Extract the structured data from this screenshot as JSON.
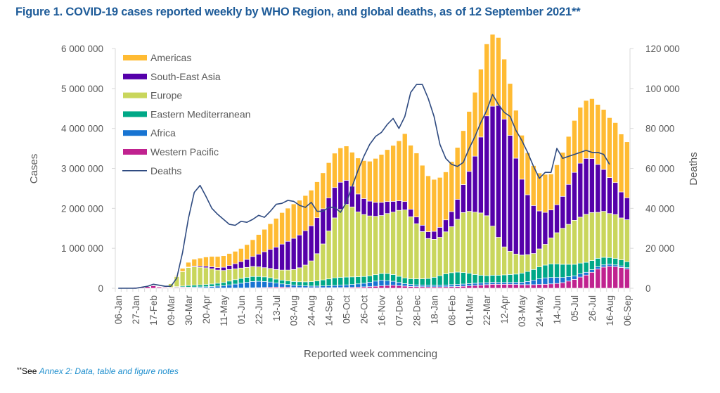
{
  "title": "Figure 1. COVID-19 cases reported weekly by WHO Region, and global deaths, as of 12 September 2021**",
  "footnote": {
    "marker": "**",
    "prefix": "See ",
    "link": "Annex 2: Data, table and figure notes"
  },
  "colors": {
    "Americas": "#ffbb33",
    "South-East Asia": "#5500aa",
    "Europe": "#c9d65c",
    "Eastern Mediterranean": "#00a887",
    "Africa": "#1874d2",
    "Western Pacific": "#c0228f",
    "Deaths": "#2e4a80"
  },
  "chart_data": {
    "type": "bar",
    "stacked": true,
    "title": "Figure 1. COVID-19 cases reported weekly by WHO Region, and global deaths, as of 12 September 2021**",
    "xlabel": "Reported week commencing",
    "ylabel": "Cases",
    "y2label": "Deaths",
    "ylim": [
      0,
      6000000
    ],
    "y2lim": [
      0,
      120000
    ],
    "yticks": [
      "0",
      "1 000 000",
      "2 000 000",
      "3 000 000",
      "4 000 000",
      "5 000 000",
      "6 000 000"
    ],
    "y2ticks": [
      "0",
      "20 000",
      "40 000",
      "60 000",
      "80 000",
      "100 000",
      "120 000"
    ],
    "legend_position": "top-left",
    "xtick_labels": [
      "06-Jan",
      "27-Jan",
      "17-Feb",
      "09-Mar",
      "30-Mar",
      "20-Apr",
      "11-May",
      "01-Jun",
      "22-Jun",
      "13-Jul",
      "03-Aug",
      "24-Aug",
      "14-Sep",
      "05-Oct",
      "26-Oct",
      "16-Nov",
      "07-Dec",
      "28-Dec",
      "18-Jan",
      "08-Feb",
      "01-Mar",
      "22-Mar",
      "12-Apr",
      "03-May",
      "24-May",
      "14-Jun",
      "05-Jul",
      "26-Jul",
      "16-Aug",
      "06-Sep"
    ],
    "xtick_every": 3,
    "weeks": 88,
    "series": [
      {
        "name": "Western Pacific",
        "values": [
          5000,
          10000,
          15000,
          20000,
          30000,
          40000,
          60000,
          30000,
          20000,
          15000,
          20000,
          20000,
          15000,
          12000,
          10000,
          8000,
          7000,
          6000,
          5000,
          5000,
          5000,
          6000,
          8000,
          10000,
          15000,
          20000,
          25000,
          30000,
          30000,
          25000,
          20000,
          18000,
          16000,
          15000,
          15000,
          14000,
          14000,
          16000,
          18000,
          20000,
          25000,
          30000,
          35000,
          40000,
          50000,
          60000,
          70000,
          75000,
          65000,
          55000,
          45000,
          40000,
          38000,
          35000,
          35000,
          35000,
          37000,
          40000,
          45000,
          50000,
          60000,
          70000,
          80000,
          90000,
          100000,
          100000,
          100000,
          100000,
          95000,
          90000,
          90000,
          90000,
          95000,
          100000,
          110000,
          120000,
          140000,
          180000,
          220000,
          280000,
          330000,
          400000,
          480000,
          530000,
          550000,
          540000,
          520000,
          480000
        ]
      },
      {
        "name": "Africa",
        "values": [
          0,
          0,
          0,
          0,
          0,
          0,
          0,
          0,
          0,
          3000,
          6000,
          10000,
          15000,
          20000,
          25000,
          30000,
          40000,
          50000,
          60000,
          80000,
          100000,
          120000,
          140000,
          160000,
          160000,
          150000,
          130000,
          100000,
          80000,
          70000,
          60000,
          50000,
          45000,
          40000,
          40000,
          45000,
          50000,
          55000,
          60000,
          65000,
          70000,
          80000,
          90000,
          110000,
          130000,
          140000,
          120000,
          100000,
          80000,
          60000,
          50000,
          45000,
          40000,
          40000,
          40000,
          40000,
          45000,
          50000,
          50000,
          55000,
          55000,
          55000,
          55000,
          50000,
          50000,
          45000,
          45000,
          45000,
          50000,
          60000,
          80000,
          110000,
          140000,
          160000,
          160000,
          150000,
          130000,
          110000,
          90000,
          80000,
          70000,
          65000,
          60000,
          55000,
          50000,
          45000,
          40000,
          35000
        ]
      },
      {
        "name": "Eastern Mediterranean",
        "values": [
          0,
          0,
          0,
          0,
          0,
          0,
          0,
          0,
          0,
          5000,
          15000,
          25000,
          40000,
          45000,
          50000,
          55000,
          60000,
          70000,
          80000,
          95000,
          110000,
          120000,
          125000,
          125000,
          120000,
          115000,
          110000,
          100000,
          95000,
          90000,
          90000,
          95000,
          100000,
          110000,
          130000,
          150000,
          170000,
          190000,
          195000,
          195000,
          190000,
          180000,
          170000,
          160000,
          160000,
          170000,
          180000,
          170000,
          155000,
          145000,
          145000,
          150000,
          160000,
          170000,
          200000,
          240000,
          280000,
          300000,
          310000,
          290000,
          260000,
          220000,
          190000,
          175000,
          175000,
          180000,
          190000,
          200000,
          210000,
          230000,
          250000,
          270000,
          300000,
          320000,
          340000,
          340000,
          330000,
          310000,
          290000,
          270000,
          250000,
          230000,
          210000,
          190000,
          170000,
          160000,
          150000,
          150000
        ]
      },
      {
        "name": "Europe",
        "values": [
          0,
          0,
          0,
          0,
          0,
          0,
          0,
          0,
          0,
          90000,
          250000,
          360000,
          450000,
          460000,
          440000,
          420000,
          380000,
          330000,
          300000,
          290000,
          270000,
          260000,
          250000,
          250000,
          240000,
          230000,
          230000,
          240000,
          250000,
          270000,
          300000,
          350000,
          420000,
          520000,
          680000,
          900000,
          1200000,
          1500000,
          1700000,
          1820000,
          1750000,
          1620000,
          1550000,
          1500000,
          1460000,
          1450000,
          1500000,
          1560000,
          1650000,
          1700000,
          1550000,
          1380000,
          1180000,
          1000000,
          950000,
          960000,
          1050000,
          1150000,
          1320000,
          1500000,
          1550000,
          1560000,
          1560000,
          1500000,
          1230000,
          950000,
          700000,
          580000,
          500000,
          450000,
          420000,
          400000,
          450000,
          520000,
          650000,
          780000,
          900000,
          1000000,
          1100000,
          1150000,
          1200000,
          1200000,
          1150000,
          1150000,
          1100000,
          1100000,
          1050000,
          1050000
        ]
      },
      {
        "name": "South-East Asia",
        "values": [
          0,
          0,
          0,
          0,
          0,
          0,
          0,
          0,
          0,
          0,
          0,
          5000,
          10000,
          20000,
          30000,
          40000,
          50000,
          60000,
          80000,
          100000,
          130000,
          160000,
          200000,
          250000,
          320000,
          400000,
          480000,
          560000,
          650000,
          720000,
          780000,
          820000,
          860000,
          880000,
          900000,
          880000,
          830000,
          760000,
          680000,
          600000,
          520000,
          450000,
          400000,
          370000,
          350000,
          330000,
          300000,
          270000,
          240000,
          210000,
          190000,
          170000,
          160000,
          170000,
          200000,
          250000,
          300000,
          380000,
          500000,
          700000,
          1000000,
          1400000,
          1900000,
          2500000,
          3000000,
          3300000,
          3200000,
          2900000,
          2400000,
          1900000,
          1500000,
          1200000,
          950000,
          800000,
          700000,
          700000,
          800000,
          1000000,
          1200000,
          1350000,
          1400000,
          1350000,
          1200000,
          1050000,
          900000,
          800000,
          650000,
          550000
        ]
      },
      {
        "name": "Americas",
        "values": [
          0,
          0,
          0,
          0,
          0,
          0,
          0,
          0,
          0,
          0,
          20000,
          80000,
          120000,
          170000,
          200000,
          230000,
          260000,
          280000,
          290000,
          300000,
          310000,
          330000,
          370000,
          420000,
          490000,
          560000,
          640000,
          720000,
          790000,
          830000,
          860000,
          870000,
          880000,
          890000,
          900000,
          900000,
          880000,
          860000,
          860000,
          860000,
          850000,
          900000,
          950000,
          1000000,
          1100000,
          1200000,
          1300000,
          1400000,
          1500000,
          1700000,
          1600000,
          1600000,
          1500000,
          1400000,
          1300000,
          1250000,
          1200000,
          1250000,
          1300000,
          1350000,
          1500000,
          1600000,
          1700000,
          1800000,
          1800000,
          1700000,
          1500000,
          1300000,
          1200000,
          1100000,
          1050000,
          1000000,
          950000,
          950000,
          900000,
          1000000,
          1100000,
          1200000,
          1300000,
          1400000,
          1450000,
          1500000,
          1500000,
          1500000,
          1500000,
          1500000,
          1450000,
          1400000
        ]
      }
    ],
    "line_series": {
      "name": "Deaths",
      "axis": "right",
      "values": [
        0,
        0,
        0,
        0,
        500,
        1000,
        2000,
        1500,
        1000,
        1000,
        5000,
        18000,
        35000,
        48000,
        51500,
        46000,
        40000,
        37000,
        34500,
        32000,
        31500,
        33500,
        33000,
        34500,
        36500,
        35500,
        38500,
        42000,
        42500,
        44000,
        43500,
        41500,
        40500,
        43000,
        38500,
        38500,
        40500,
        40500,
        38000,
        43000,
        51000,
        59000,
        66000,
        72000,
        76000,
        78000,
        82000,
        85000,
        80000,
        86000,
        98000,
        102000,
        102000,
        95000,
        86000,
        72000,
        65000,
        62000,
        61000,
        63000,
        70000,
        76000,
        83000,
        89000,
        97000,
        92000,
        88000,
        86000,
        79000,
        74000,
        68000,
        61000,
        55000,
        58000,
        58000,
        70000,
        65000,
        66000,
        67000,
        68000,
        69000,
        68000,
        68000,
        67000,
        62000,
        0,
        0,
        0
      ]
    }
  }
}
